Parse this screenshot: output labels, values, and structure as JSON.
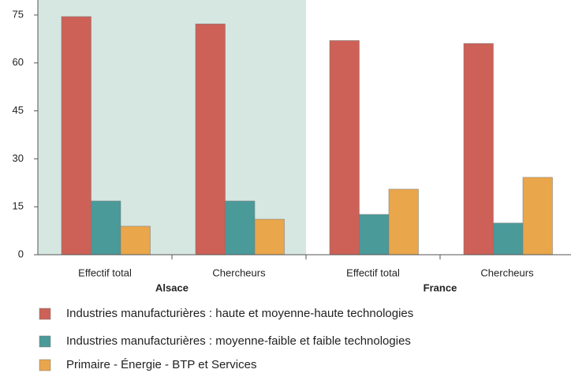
{
  "chart_data": {
    "type": "bar",
    "categories": [
      "Effectif total",
      "Chercheurs",
      "Effectif total",
      "Chercheurs"
    ],
    "groups": [
      "Alsace",
      "France"
    ],
    "series": [
      {
        "name": "Industries manufacturières : haute et moyenne-haute technologies",
        "color": "#cd6157",
        "values": [
          74.5,
          72.2,
          67.0,
          66.1
        ]
      },
      {
        "name": "Industries manufacturières : moyenne-faible et faible technologies",
        "color": "#4b9a9a",
        "values": [
          16.8,
          16.8,
          12.6,
          9.9
        ]
      },
      {
        "name": "Primaire - Énergie - BTP et Services",
        "color": "#e9a64a",
        "values": [
          8.9,
          11.1,
          20.5,
          24.2
        ]
      }
    ],
    "ylim": [
      0,
      75
    ],
    "yticks": [
      0,
      15,
      30,
      45,
      60,
      75
    ]
  }
}
